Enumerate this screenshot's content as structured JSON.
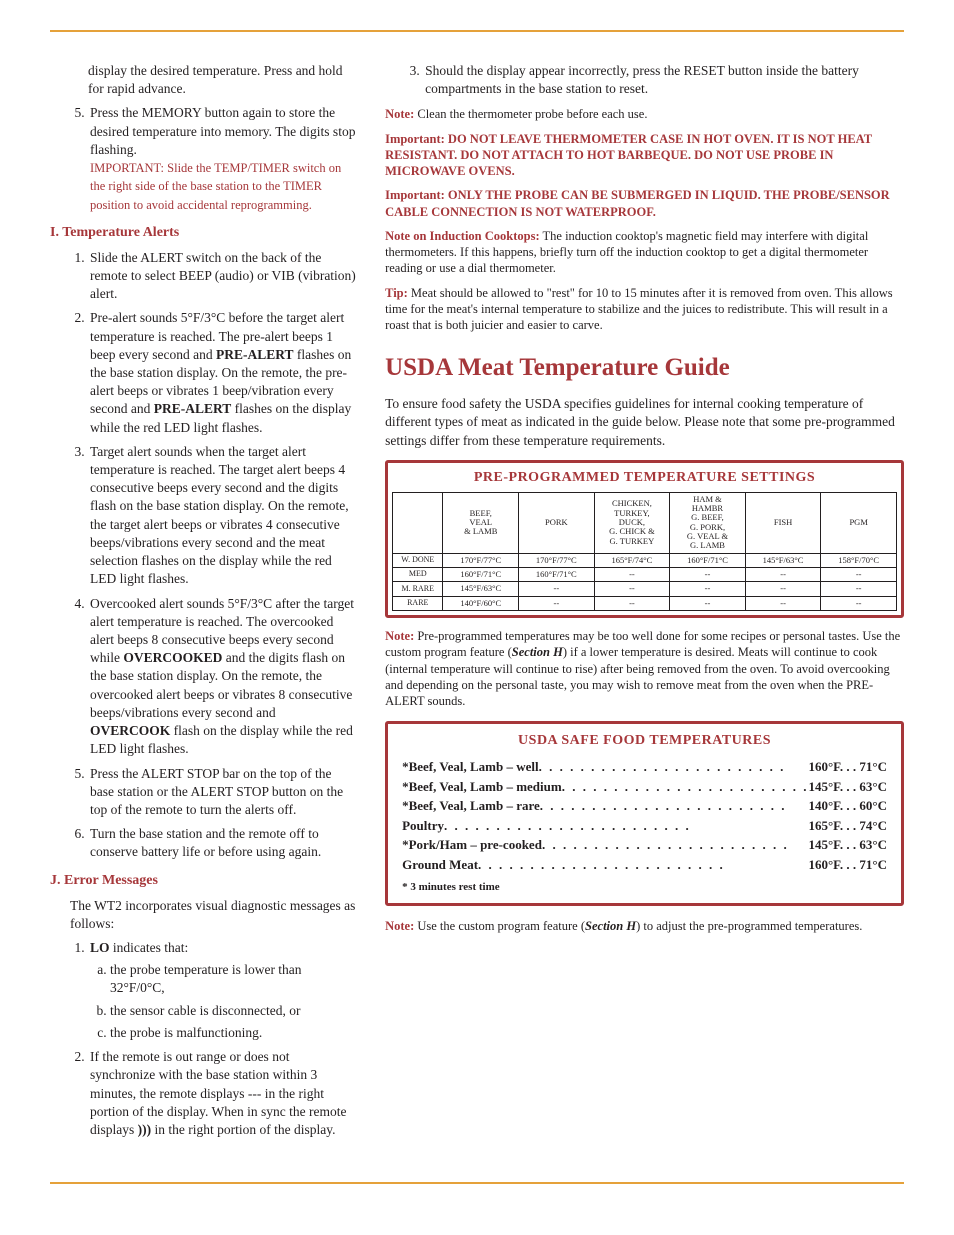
{
  "colors": {
    "accent": "#a6373a",
    "rule": "#e5a13a",
    "text": "#231f20",
    "bg": "#ffffff"
  },
  "fonts": {
    "body_family": "Georgia",
    "body_size_pt": 10,
    "h2_size_pt": 19
  },
  "left": {
    "lead_items": [
      "display the desired temperature. Press and hold for rapid advance.",
      "Press the MEMORY button again to store the desired temperature into memory. The digits stop flashing."
    ],
    "lead_important": "IMPORTANT: Slide the TEMP/TIMER switch on the right side of the base station to the TIMER position to avoid accidental reprogramming.",
    "secI": {
      "title": "I. Temperature Alerts",
      "items": [
        "Slide the ALERT switch on the back of the remote to select BEEP (audio) or VIB (vibration) alert.",
        "Pre-alert sounds 5°F/3°C before the target alert temperature is reached. The pre-alert beeps 1 beep every second and PRE-ALERT flashes on the base station display. On the remote, the pre-alert beeps or vibrates 1 beep/vibration every second and PRE-ALERT flashes on the display while the red LED light flashes.",
        "Target alert sounds when the target alert temperature is reached. The target alert beeps 4 consecutive beeps every second and the digits flash on the base station display. On the remote, the target alert beeps or vibrates 4 consecutive beeps/vibrations every second and the meat selection flashes on the display while the red LED light flashes.",
        "Overcooked alert sounds 5°F/3°C after the target alert temperature is reached. The overcooked alert beeps 8 consecutive beeps every second while OVERCOOKED and the digits flash on the base station display. On the remote, the overcooked alert beeps or vibrates 8 consecutive beeps/vibrations every second and OVERCOOK flash on the display while the red LED light flashes.",
        "Press the ALERT STOP bar on the top of the base station or the ALERT STOP button on the top of the remote to turn the alerts off.",
        "Turn the base station and the remote off to conserve battery life or before using again."
      ]
    },
    "secJ": {
      "title": "J. Error Messages",
      "intro": "The WT2 incorporates visual diagnostic messages as follows:",
      "item1_label": "LO indicates that:",
      "item1_sub": [
        "the probe temperature is lower than 32°F/0°C,",
        "the sensor cable is disconnected, or",
        "the probe is malfunctioning."
      ],
      "item2": "If the remote is out range or does not synchronize with the base station within 3 minutes, the remote displays --- in the right portion of the display. When in sync the remote displays ))) in the right portion of the display."
    }
  },
  "right": {
    "topitem": "Should the display appear incorrectly, press the RESET button inside the battery compartments in the base station to reset.",
    "notes": [
      {
        "label": "Note:",
        "text": " Clean the thermometer probe before each use."
      },
      {
        "label": "",
        "text": "Important: DO NOT LEAVE THERMOMETER CASE IN HOT OVEN. IT IS NOT HEAT RESISTANT. DO NOT ATTACH TO HOT BARBEQUE. DO NOT USE PROBE IN MICROWAVE OVENS.",
        "imp": true
      },
      {
        "label": "",
        "text": "Important: ONLY THE PROBE CAN BE SUBMERGED IN LIQUID. THE PROBE/SENSOR CABLE CONNECTION IS NOT WATERPROOF.",
        "imp": true
      },
      {
        "label": "Note on Induction Cooktops:",
        "text": " The induction cooktop's magnetic field may interfere with digital thermometers. If this happens, briefly turn off the induction cooktop to get a digital thermometer reading or use a dial thermometer."
      },
      {
        "label": "Tip:",
        "text": " Meat should be allowed to \"rest\" for 10 to 15 minutes after it is removed from oven. This allows time for the meat's internal temperature to stabilize and the juices to redistribute. This will result in a roast that is both juicier and easier to carve."
      }
    ],
    "h2": "USDA Meat Temperature Guide",
    "intro": "To ensure food safety the USDA specifies guidelines for internal cooking temperature of different types of meat as indicated in the guide below. Please note that some pre-programmed settings differ from these temperature requirements.",
    "table1": {
      "title": "PRE-PROGRAMMED TEMPERATURE SETTINGS",
      "columns": [
        "",
        "BEEF,\nVEAL\n& LAMB",
        "PORK",
        "CHICKEN,\nTURKEY,\nDUCK,\nG. CHICK &\nG. TURKEY",
        "HAM &\nHAMBR\nG. BEEF,\nG. PORK,\nG. VEAL &\nG. LAMB",
        "FISH",
        "PGM"
      ],
      "rows": [
        [
          "W. DONE",
          "170°F/77°C",
          "170°F/77°C",
          "165°F/74°C",
          "160°F/71°C",
          "145°F/63°C",
          "158°F/70°C"
        ],
        [
          "MED",
          "160°F/71°C",
          "160°F/71°C",
          "--",
          "--",
          "--",
          "--"
        ],
        [
          "M. RARE",
          "145°F/63°C",
          "--",
          "--",
          "--",
          "--",
          "--"
        ],
        [
          "RARE",
          "140°F/60°C",
          "--",
          "--",
          "--",
          "--",
          "--"
        ]
      ]
    },
    "note_after": {
      "label": "Note:",
      "a": " Pre-programmed temperatures may be too well done for some recipes or personal tastes. Use the custom program feature (",
      "b": "Section H",
      "c": ") if a lower temperature is desired. Meats will continue to cook (internal temperature will continue to rise) after being removed from the oven. To avoid overcooking and depending on the personal taste, you may wish to remove meat from the oven when the PRE-ALERT sounds."
    },
    "usda_box": {
      "title": "USDA SAFE FOOD TEMPERATURES",
      "rows": [
        {
          "label": "*Beef, Veal, Lamb – well",
          "f": "160°F",
          "c": "71°C"
        },
        {
          "label": "*Beef, Veal, Lamb – medium",
          "f": "145°F",
          "c": "63°C"
        },
        {
          "label": "*Beef, Veal, Lamb – rare",
          "f": "140°F",
          "c": "60°C"
        },
        {
          "label": "Poultry",
          "f": "165°F",
          "c": "74°C"
        },
        {
          "label": "*Pork/Ham – pre-cooked",
          "f": "145°F",
          "c": "63°C"
        },
        {
          "label": "Ground Meat",
          "f": "160°F",
          "c": "71°C"
        }
      ],
      "footnote": "* 3 minutes rest time"
    },
    "final_note": {
      "label": "Note:",
      "a": " Use the custom program feature (",
      "b": "Section H",
      "c": ") to adjust the pre-programmed temperatures."
    }
  }
}
